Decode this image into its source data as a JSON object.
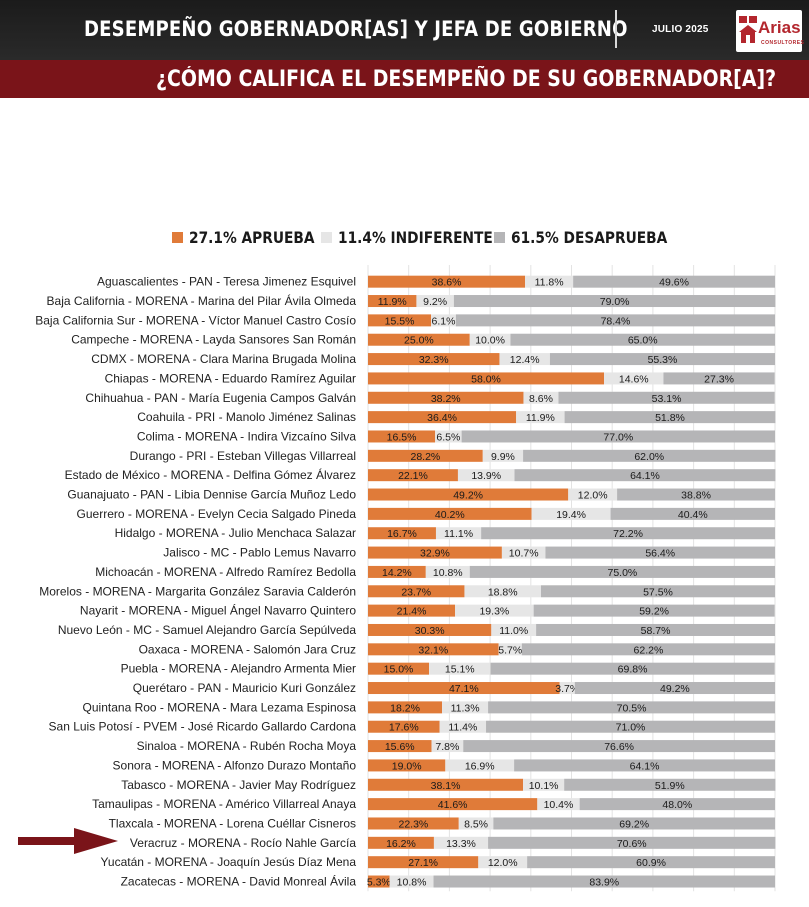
{
  "header": {
    "title": "DESEMPEÑO GOBERNADOR[AS] Y JEFA DE GOBIERNO",
    "date": "JULIO 2025",
    "logo_text": "Arias",
    "logo_sub": "CONSULTORES",
    "question": "¿CÓMO CALIFICA EL DESEMPEÑO DE SU GOBERNADOR[A]?"
  },
  "legend": [
    {
      "label": "27.1% APRUEBA",
      "color": "#e07b39"
    },
    {
      "label": "11.4% INDIFERENTE",
      "color": "#e6e6e6"
    },
    {
      "label": "61.5% DESAPRUEBA",
      "color": "#b5b5b7"
    }
  ],
  "chart_data": {
    "type": "bar",
    "orientation": "horizontal",
    "stacked": true,
    "normalized": true,
    "grid": true,
    "series": [
      {
        "name": "APRUEBA",
        "color": "#e07b39",
        "values": [
          38.6,
          11.9,
          15.5,
          25.0,
          32.3,
          58.0,
          38.2,
          36.4,
          16.5,
          28.2,
          22.1,
          49.2,
          40.2,
          16.7,
          32.9,
          14.2,
          23.7,
          21.4,
          30.3,
          32.1,
          15.0,
          47.1,
          18.2,
          17.6,
          15.6,
          19.0,
          38.1,
          41.6,
          22.3,
          16.2,
          27.1,
          5.3
        ]
      },
      {
        "name": "INDIFERENTE",
        "color": "#e6e6e6",
        "values": [
          11.8,
          9.2,
          6.1,
          10.0,
          12.4,
          14.6,
          8.6,
          11.9,
          6.5,
          9.9,
          13.9,
          12.0,
          19.4,
          11.1,
          10.7,
          10.8,
          18.8,
          19.3,
          11.0,
          5.7,
          15.1,
          3.7,
          11.3,
          11.4,
          7.8,
          16.9,
          10.1,
          10.4,
          8.5,
          13.3,
          12.0,
          10.8
        ]
      },
      {
        "name": "DESAPRUEBA",
        "color": "#b5b5b7",
        "values": [
          49.6,
          79.0,
          78.4,
          65.0,
          55.3,
          27.3,
          53.1,
          51.8,
          77.0,
          62.0,
          64.1,
          38.8,
          40.4,
          72.2,
          56.4,
          75.0,
          57.5,
          59.2,
          58.7,
          62.2,
          69.8,
          49.2,
          70.5,
          71.0,
          76.6,
          64.1,
          51.9,
          48.0,
          69.2,
          70.6,
          60.9,
          83.9
        ]
      }
    ],
    "categories": [
      "Aguascalientes - PAN - Teresa Jimenez Esquivel",
      "Baja California - MORENA - Marina del Pilar Ávila Olmeda",
      "Baja California Sur - MORENA - Víctor Manuel Castro Cosío",
      "Campeche - MORENA - Layda Sansores San Román",
      "CDMX - MORENA - Clara Marina Brugada Molina",
      "Chiapas - MORENA - Eduardo Ramírez Aguilar",
      "Chihuahua - PAN - María Eugenia Campos Galván",
      "Coahuila - PRI - Manolo Jiménez Salinas",
      "Colima - MORENA - Indira Vizcaíno Silva",
      "Durango - PRI - Esteban Villegas Villarreal",
      "Estado de México - MORENA - Delfina Gómez Álvarez",
      "Guanajuato - PAN - Libia Dennise García Muñoz Ledo",
      "Guerrero - MORENA - Evelyn Cecia Salgado Pineda",
      "Hidalgo - MORENA - Julio Menchaca Salazar",
      "Jalisco - MC - Pablo Lemus Navarro",
      "Michoacán - MORENA - Alfredo Ramírez Bedolla",
      "Morelos - MORENA - Margarita González Saravia Calderón",
      "Nayarit - MORENA - Miguel Ángel Navarro Quintero",
      "Nuevo León - MC - Samuel Alejandro García Sepúlveda",
      "Oaxaca - MORENA - Salomón Jara Cruz",
      "Puebla - MORENA - Alejandro Armenta Mier",
      "Querétaro - PAN - Mauricio Kuri González",
      "Quintana Roo - MORENA - Mara Lezama Espinosa",
      "San Luis Potosí - PVEM - José Ricardo Gallardo Cardona",
      "Sinaloa - MORENA - Rubén Rocha Moya",
      "Sonora - MORENA - Alfonzo Durazo Montaño",
      "Tabasco - MORENA - Javier May Rodríguez",
      "Tamaulipas - MORENA - Américo Villarreal Anaya",
      "Tlaxcala - MORENA - Lorena Cuéllar Cisneros",
      "Veracruz - MORENA - Rocío Nahle García",
      "Yucatán - MORENA - Joaquín Jesús Díaz Mena",
      "Zacatecas - MORENA - David Monreal Ávila"
    ],
    "highlighted_category": "Veracruz - MORENA - Rocío Nahle García",
    "xlim": [
      0,
      100
    ],
    "legend_position": "top"
  }
}
